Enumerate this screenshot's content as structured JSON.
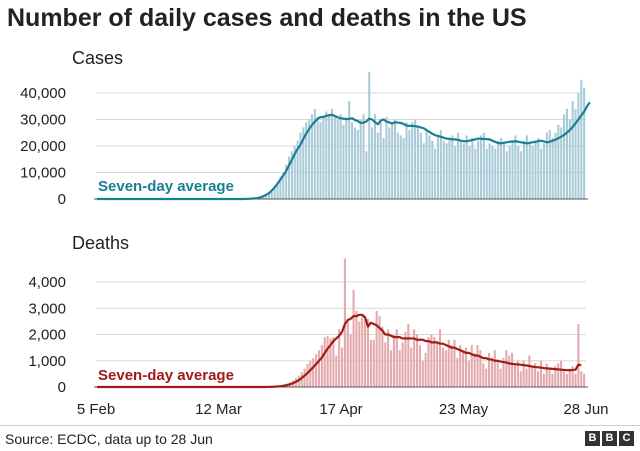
{
  "title": "Number of daily cases and deaths in the US",
  "source": "Source: ECDC, data up to 28 Jun",
  "logo": [
    "B",
    "B",
    "C"
  ],
  "colors": {
    "cases_bar": "#a9cbd8",
    "cases_line": "#1b7f93",
    "deaths_bar": "#e4a9ad",
    "deaths_line": "#a01c17",
    "baseline": "#555555",
    "grid": "#d9d9d9"
  },
  "chart_data": [
    {
      "type": "bar",
      "title": "Cases",
      "x_tick_labels": [
        "5 Feb",
        "12 Mar",
        "17 Apr",
        "23 May",
        "28 Jun"
      ],
      "y_ticks": [
        0,
        10000,
        20000,
        30000,
        40000
      ],
      "y_tick_labels": [
        "0",
        "10,000",
        "20,000",
        "30,000",
        "40,000"
      ],
      "ylim": [
        0,
        50000
      ],
      "grid": true,
      "average_label": "Seven-day average",
      "series": [
        {
          "name": "Daily cases",
          "kind": "bar",
          "values": [
            0,
            0,
            0,
            0,
            0,
            0,
            0,
            0,
            0,
            0,
            0,
            0,
            0,
            0,
            0,
            0,
            0,
            0,
            0,
            0,
            0,
            0,
            0,
            0,
            0,
            0,
            0,
            0,
            0,
            0,
            0,
            0,
            0,
            0,
            0,
            0,
            0,
            0,
            0,
            0,
            0,
            0,
            0,
            0,
            0,
            0,
            0,
            0,
            0,
            0,
            0,
            0,
            0,
            0,
            0,
            0,
            300,
            500,
            900,
            1500,
            2500,
            3500,
            5000,
            6500,
            8500,
            10000,
            13000,
            16000,
            18000,
            20000,
            22000,
            25000,
            27000,
            29000,
            30000,
            32000,
            34000,
            31000,
            29000,
            31000,
            33000,
            32000,
            34000,
            31000,
            30000,
            32000,
            28000,
            30000,
            37000,
            29000,
            27000,
            26000,
            30000,
            32000,
            18000,
            48000,
            27000,
            32000,
            25000,
            29000,
            23000,
            31000,
            27000,
            29000,
            30000,
            25000,
            24000,
            23000,
            29000,
            26000,
            29000,
            30000,
            27000,
            25000,
            21000,
            26000,
            24000,
            22000,
            19000,
            24000,
            26000,
            22000,
            21000,
            23000,
            24000,
            20000,
            25000,
            22000,
            21000,
            24000,
            20000,
            23000,
            19000,
            22000,
            24000,
            25000,
            19000,
            21000,
            20000,
            19000,
            22000,
            23000,
            21000,
            18000,
            20000,
            22000,
            24000,
            20000,
            18000,
            22000,
            24000,
            21000,
            20000,
            22000,
            23000,
            19000,
            21000,
            25000,
            26000,
            23000,
            25000,
            28000,
            27000,
            32000,
            34000,
            30000,
            37000,
            34000,
            40000,
            45000,
            42000
          ]
        },
        {
          "name": "Seven-day average",
          "kind": "line",
          "values": [
            0,
            0,
            0,
            0,
            0,
            0,
            0,
            0,
            0,
            0,
            0,
            0,
            0,
            0,
            0,
            0,
            0,
            0,
            0,
            0,
            0,
            0,
            0,
            0,
            0,
            0,
            0,
            0,
            0,
            0,
            0,
            0,
            0,
            0,
            0,
            0,
            0,
            0,
            0,
            0,
            0,
            0,
            0,
            0,
            0,
            0,
            0,
            0,
            0,
            0,
            0,
            0,
            50,
            80,
            140,
            230,
            350,
            650,
            1050,
            1550,
            2200,
            3200,
            4400,
            5800,
            7300,
            8900,
            10600,
            12700,
            14800,
            17000,
            18900,
            20500,
            22700,
            24700,
            26400,
            27900,
            29200,
            30300,
            30900,
            31000,
            31400,
            31600,
            31800,
            31300,
            30800,
            30500,
            30300,
            30200,
            30200,
            30500,
            29800,
            29400,
            28700,
            28800,
            29300,
            30300,
            30000,
            29000,
            28200,
            29600,
            30000,
            29200,
            28900,
            28500,
            29000,
            28800,
            28700,
            28300,
            27700,
            27600,
            27600,
            27500,
            27300,
            27000,
            26700,
            26000,
            25300,
            24600,
            24100,
            23800,
            23500,
            23100,
            22800,
            22700,
            22500,
            22500,
            22300,
            22000,
            21800,
            21800,
            22000,
            22300,
            22500,
            22800,
            22700,
            22700,
            22600,
            22500,
            22000,
            21500,
            21100,
            21000,
            21200,
            21400,
            21600,
            21700,
            21800,
            21600,
            21400,
            21200,
            21000,
            21200,
            21400,
            21600,
            21800,
            22000,
            21700,
            21400,
            21600,
            22000,
            22400,
            22900,
            23500,
            24200,
            25100,
            26000,
            27200,
            28600,
            30000,
            31500,
            33000,
            35000,
            36500
          ]
        }
      ]
    },
    {
      "type": "bar",
      "title": "Deaths",
      "x_tick_labels": [
        "5 Feb",
        "12 Mar",
        "17 Apr",
        "23 May",
        "28 Jun"
      ],
      "y_ticks": [
        0,
        1000,
        2000,
        3000,
        4000
      ],
      "y_tick_labels": [
        "0",
        "1,000",
        "2,000",
        "3,000",
        "4,000"
      ],
      "ylim": [
        0,
        5000
      ],
      "grid": true,
      "average_label": "Seven-day average",
      "series": [
        {
          "name": "Daily deaths",
          "kind": "bar",
          "values": [
            0,
            0,
            0,
            0,
            0,
            0,
            0,
            0,
            0,
            0,
            0,
            0,
            0,
            0,
            0,
            0,
            0,
            0,
            0,
            0,
            0,
            0,
            0,
            0,
            0,
            0,
            0,
            0,
            0,
            0,
            0,
            0,
            0,
            0,
            0,
            0,
            0,
            0,
            0,
            0,
            0,
            0,
            0,
            0,
            0,
            0,
            0,
            0,
            0,
            0,
            0,
            0,
            0,
            0,
            0,
            0,
            0,
            0,
            0,
            0,
            10,
            15,
            25,
            40,
            60,
            90,
            130,
            180,
            250,
            330,
            430,
            560,
            700,
            870,
            1000,
            1100,
            1250,
            1400,
            1600,
            1900,
            1950,
            1850,
            1900,
            1200,
            2200,
            1500,
            4900,
            2600,
            2000,
            3700,
            2900,
            2500,
            2700,
            2700,
            2600,
            1800,
            1800,
            2900,
            2700,
            2300,
            1700,
            2200,
            1400,
            2000,
            2200,
            1400,
            1700,
            2100,
            2400,
            1500,
            2200,
            2000,
            1600,
            1000,
            1300,
            1900,
            2000,
            1900,
            1700,
            2200,
            1500,
            1400,
            1800,
            1600,
            1800,
            1100,
            1600,
            1400,
            1500,
            1000,
            1600,
            1300,
            1600,
            1400,
            900,
            700,
            1300,
            1100,
            1400,
            1000,
            700,
            1100,
            1400,
            1200,
            1300,
            900,
            1000,
            600,
            1000,
            700,
            1200,
            800,
            900,
            600,
            1000,
            500,
            900,
            700,
            500,
            800,
            900,
            1000,
            600,
            500,
            700,
            800,
            500,
            2400,
            600,
            500
          ]
        },
        {
          "name": "Seven-day average",
          "kind": "line",
          "values": [
            0,
            0,
            0,
            0,
            0,
            0,
            0,
            0,
            0,
            0,
            0,
            0,
            0,
            0,
            0,
            0,
            0,
            0,
            0,
            0,
            0,
            0,
            0,
            0,
            0,
            0,
            0,
            0,
            0,
            0,
            0,
            0,
            0,
            0,
            0,
            0,
            0,
            0,
            0,
            0,
            0,
            0,
            0,
            0,
            0,
            0,
            0,
            0,
            0,
            0,
            0,
            0,
            0,
            0,
            0,
            0,
            0,
            0,
            0,
            2,
            6,
            10,
            15,
            25,
            35,
            55,
            75,
            105,
            145,
            200,
            260,
            340,
            430,
            530,
            640,
            750,
            870,
            1000,
            1120,
            1300,
            1460,
            1600,
            1750,
            1850,
            1950,
            2100,
            2400,
            2550,
            2600,
            2700,
            2700,
            2750,
            2750,
            2650,
            2300,
            2450,
            2400,
            2350,
            2250,
            2150,
            2000,
            2000,
            1950,
            1900,
            1900,
            1900,
            1850,
            1850,
            1850,
            1850,
            1850,
            1800,
            1800,
            1800,
            1750,
            1750,
            1700,
            1700,
            1700,
            1650,
            1650,
            1600,
            1550,
            1500,
            1500,
            1450,
            1400,
            1350,
            1300,
            1300,
            1250,
            1200,
            1200,
            1150,
            1100,
            1100,
            1050,
            1050,
            1000,
            1000,
            970,
            950,
            930,
            900,
            880,
            870,
            860,
            850,
            830,
            820,
            800,
            780,
            760,
            750,
            740,
            720,
            710,
            700,
            690,
            680,
            670,
            660,
            650,
            640,
            640,
            650,
            660,
            850,
            830
          ]
        }
      ]
    }
  ]
}
